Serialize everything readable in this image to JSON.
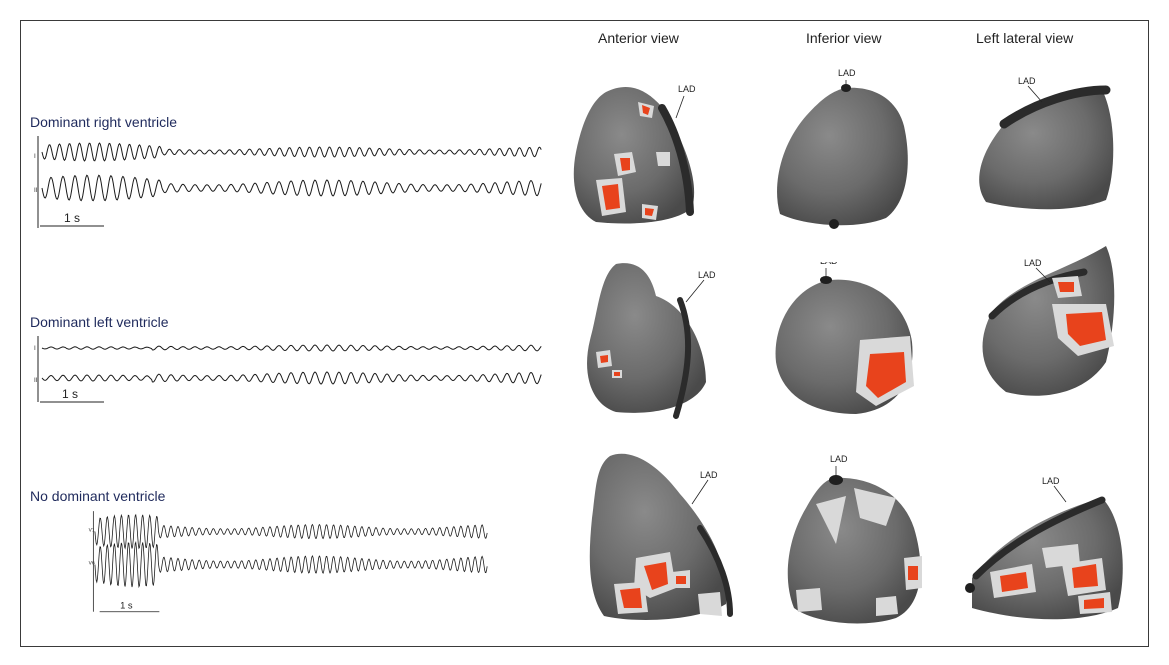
{
  "column_headers": [
    "Anterior view",
    "Inferior view",
    "Left lateral view"
  ],
  "rows": [
    {
      "title": "Dominant right ventricle",
      "leads": [
        "I",
        "II"
      ],
      "scale_label": "1 s",
      "heart_label": "LAD"
    },
    {
      "title": "Dominant left ventricle",
      "leads": [
        "I",
        "II"
      ],
      "scale_label": "1 s",
      "heart_label": "LAD"
    },
    {
      "title": "No dominant ventricle",
      "leads": [
        "V1",
        "V6"
      ],
      "scale_label": "1 s",
      "heart_label": "LAD"
    }
  ],
  "colors": {
    "heart_surface": "#6b6b6b",
    "hotspot_core": "#e8431c",
    "hotspot_halo": "#d9d9d9",
    "lad_vessel": "#2b2b2b",
    "row_title": "#1f2a5c"
  }
}
